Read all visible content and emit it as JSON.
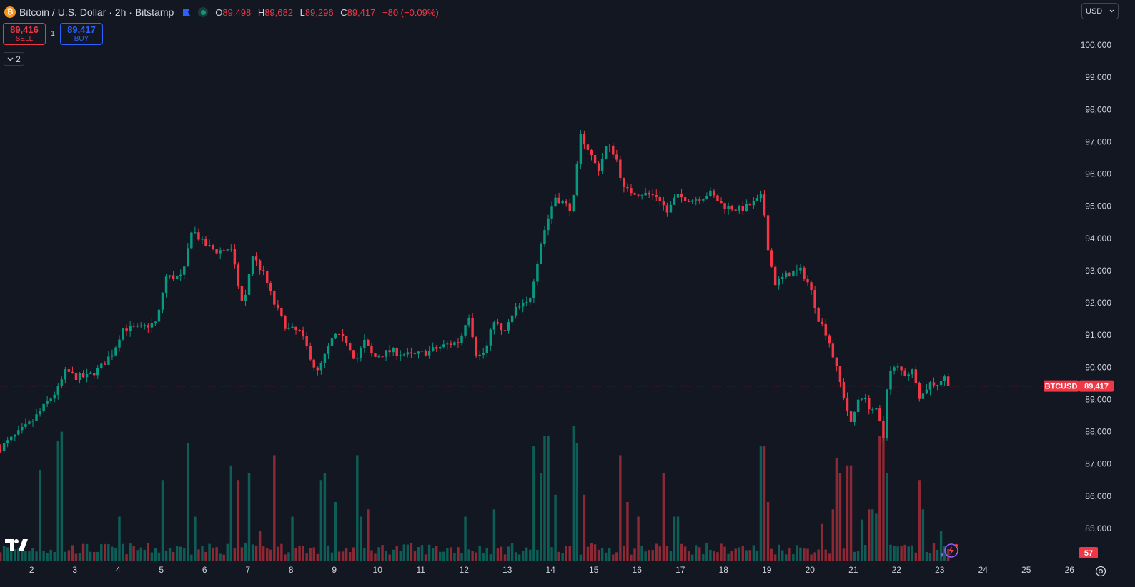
{
  "header": {
    "symbol_title": "Bitcoin / U.S. Dollar · 2h · Bitstamp",
    "coin_icon": "bitcoin-icon",
    "ohlc": {
      "o_label": "O",
      "o": "89,498",
      "h_label": "H",
      "h": "89,682",
      "l_label": "L",
      "l": "89,296",
      "c_label": "C",
      "c": "89,417",
      "change": "−80 (−0.09%)"
    }
  },
  "trade": {
    "sell_price": "89,416",
    "sell_label": "SELL",
    "spread": "1",
    "buy_price": "89,417",
    "buy_label": "BUY"
  },
  "indicators": {
    "collapsed_count": "2"
  },
  "currency": {
    "selected": "USD"
  },
  "price_tag": {
    "symbol": "BTCUSD",
    "price": "89,417"
  },
  "volume_tag": "57",
  "colors": {
    "up": "#089981",
    "down": "#f23645",
    "background": "#131722"
  },
  "chart_data": {
    "type": "candlestick",
    "ylim": [
      84000,
      100600
    ],
    "y_ticks": [
      85000,
      86000,
      87000,
      88000,
      89000,
      90000,
      91000,
      92000,
      93000,
      94000,
      95000,
      96000,
      97000,
      98000,
      99000,
      100000
    ],
    "y_tick_labels": [
      "85,000",
      "86,000",
      "87,000",
      "88,000",
      "89,000",
      "90,000",
      "91,000",
      "92,000",
      "93,000",
      "94,000",
      "95,000",
      "96,000",
      "97,000",
      "98,000",
      "99,000",
      "100,000"
    ],
    "x_tick_days": [
      2,
      3,
      4,
      5,
      6,
      7,
      8,
      9,
      10,
      11,
      12,
      13,
      14,
      15,
      16,
      17,
      18,
      19,
      20,
      21,
      22,
      23,
      24,
      25,
      26
    ],
    "x_tick_labels": [
      "2",
      "3",
      "4",
      "5",
      "6",
      "7",
      "8",
      "9",
      "10",
      "11",
      "12",
      "13",
      "14",
      "15",
      "16",
      "17",
      "18",
      "19",
      "20",
      "21",
      "22",
      "23",
      "24",
      "25",
      "26"
    ],
    "x_range_days": [
      1.27,
      26.21
    ],
    "last_price": 89417,
    "close_anchors": [
      [
        1.28,
        87500
      ],
      [
        1.6,
        87850
      ],
      [
        2.0,
        88300
      ],
      [
        2.3,
        88800
      ],
      [
        2.6,
        89300
      ],
      [
        2.8,
        89900
      ],
      [
        3.0,
        89700
      ],
      [
        3.3,
        89700
      ],
      [
        3.6,
        90000
      ],
      [
        3.9,
        90500
      ],
      [
        4.1,
        91200
      ],
      [
        4.5,
        91200
      ],
      [
        4.9,
        91400
      ],
      [
        5.1,
        92800
      ],
      [
        5.5,
        92800
      ],
      [
        5.7,
        94300
      ],
      [
        6.0,
        93800
      ],
      [
        6.3,
        93600
      ],
      [
        6.6,
        93700
      ],
      [
        6.9,
        91800
      ],
      [
        7.1,
        93500
      ],
      [
        7.4,
        92800
      ],
      [
        7.6,
        92000
      ],
      [
        7.9,
        91200
      ],
      [
        8.2,
        91100
      ],
      [
        8.4,
        90500
      ],
      [
        8.6,
        89800
      ],
      [
        8.8,
        90400
      ],
      [
        9.0,
        91000
      ],
      [
        9.3,
        90800
      ],
      [
        9.5,
        90200
      ],
      [
        9.7,
        90800
      ],
      [
        9.9,
        90300
      ],
      [
        10.3,
        90500
      ],
      [
        10.8,
        90350
      ],
      [
        11.2,
        90500
      ],
      [
        11.6,
        90700
      ],
      [
        11.9,
        90800
      ],
      [
        12.1,
        91700
      ],
      [
        12.3,
        90300
      ],
      [
        12.5,
        90500
      ],
      [
        12.7,
        91500
      ],
      [
        12.9,
        91000
      ],
      [
        13.2,
        91800
      ],
      [
        13.5,
        92000
      ],
      [
        13.8,
        94000
      ],
      [
        14.1,
        95300
      ],
      [
        14.3,
        95100
      ],
      [
        14.5,
        94900
      ],
      [
        14.7,
        97200
      ],
      [
        14.9,
        96700
      ],
      [
        15.1,
        96100
      ],
      [
        15.3,
        96900
      ],
      [
        15.5,
        96600
      ],
      [
        15.7,
        95500
      ],
      [
        16.1,
        95400
      ],
      [
        16.5,
        95300
      ],
      [
        16.7,
        94800
      ],
      [
        16.9,
        95300
      ],
      [
        17.3,
        95200
      ],
      [
        17.7,
        95400
      ],
      [
        18.0,
        95000
      ],
      [
        18.4,
        94900
      ],
      [
        18.7,
        95100
      ],
      [
        18.9,
        95300
      ],
      [
        19.05,
        93500
      ],
      [
        19.2,
        92600
      ],
      [
        19.5,
        92900
      ],
      [
        19.8,
        93000
      ],
      [
        20.0,
        92500
      ],
      [
        20.2,
        91500
      ],
      [
        20.4,
        91000
      ],
      [
        20.6,
        90000
      ],
      [
        20.8,
        89000
      ],
      [
        20.95,
        88200
      ],
      [
        21.15,
        89200
      ],
      [
        21.35,
        88800
      ],
      [
        21.55,
        88600
      ],
      [
        21.7,
        87800
      ],
      [
        21.8,
        89800
      ],
      [
        22.0,
        90000
      ],
      [
        22.2,
        89800
      ],
      [
        22.4,
        89900
      ],
      [
        22.55,
        89000
      ],
      [
        22.75,
        89500
      ],
      [
        22.95,
        89500
      ],
      [
        23.1,
        89700
      ],
      [
        23.25,
        89417
      ]
    ],
    "volume_peaks": [
      [
        2.2,
        0.62
      ],
      [
        2.6,
        0.82
      ],
      [
        2.7,
        0.88
      ],
      [
        4.0,
        0.3
      ],
      [
        5.0,
        0.55
      ],
      [
        5.6,
        0.8
      ],
      [
        5.8,
        0.3
      ],
      [
        6.6,
        0.65
      ],
      [
        6.8,
        0.55
      ],
      [
        7.0,
        0.6
      ],
      [
        7.3,
        0.2
      ],
      [
        7.6,
        0.72
      ],
      [
        8.0,
        0.3
      ],
      [
        8.7,
        0.55
      ],
      [
        8.8,
        0.6
      ],
      [
        9.0,
        0.4
      ],
      [
        9.5,
        0.72
      ],
      [
        9.6,
        0.3
      ],
      [
        9.8,
        0.35
      ],
      [
        12.0,
        0.3
      ],
      [
        12.7,
        0.35
      ],
      [
        13.6,
        0.78
      ],
      [
        13.8,
        0.6
      ],
      [
        13.9,
        0.85
      ],
      [
        14.1,
        0.45
      ],
      [
        14.5,
        0.92
      ],
      [
        14.6,
        0.8
      ],
      [
        14.8,
        0.45
      ],
      [
        15.6,
        0.72
      ],
      [
        15.8,
        0.4
      ],
      [
        16.0,
        0.3
      ],
      [
        16.6,
        0.6
      ],
      [
        16.9,
        0.3
      ],
      [
        18.9,
        0.78
      ],
      [
        19.0,
        0.4
      ],
      [
        20.3,
        0.25
      ],
      [
        20.5,
        0.35
      ],
      [
        20.6,
        0.7
      ],
      [
        20.7,
        0.6
      ],
      [
        20.9,
        0.65
      ],
      [
        21.2,
        0.28
      ],
      [
        21.4,
        0.35
      ],
      [
        21.5,
        0.32
      ],
      [
        21.6,
        0.85
      ],
      [
        21.7,
        0.85
      ],
      [
        21.8,
        0.6
      ],
      [
        22.5,
        0.55
      ],
      [
        22.6,
        0.35
      ],
      [
        23.0,
        0.2
      ]
    ]
  }
}
